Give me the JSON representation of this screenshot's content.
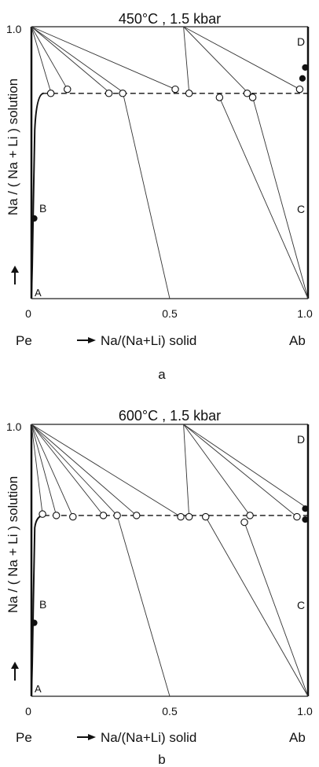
{
  "figure": {
    "panels": [
      {
        "id": "a",
        "title": "450°C , 1.5 kbar",
        "caption": "a",
        "ylabel": "Na / ( Na + Li ) solution",
        "xlabel_left": "Pe",
        "xlabel_mid": "Na/(Na+Li) solid",
        "xlabel_right": "Ab",
        "ticks": {
          "x0": "0",
          "x05": "0.5",
          "x1": "1.0",
          "y1": "1.0"
        },
        "corners": {
          "A": "A",
          "B": "B",
          "C": "C",
          "D": "D"
        }
      },
      {
        "id": "b",
        "title": "600°C , 1.5 kbar",
        "caption": "b",
        "ylabel": "Na / ( Na + Li ) solution",
        "xlabel_left": "Pe",
        "xlabel_mid": "Na/(Na+Li) solid",
        "xlabel_right": "Ab",
        "ticks": {
          "x0": "0",
          "x05": "0.5",
          "x1": "1.0",
          "y1": "1.0"
        },
        "corners": {
          "A": "A",
          "B": "B",
          "C": "C",
          "D": "D"
        }
      }
    ]
  },
  "chart_data": [
    {
      "type": "scatter",
      "title": "450°C , 1.5 kbar",
      "xlabel": "Na/(Na+Li) solid",
      "ylabel": "Na / ( Na + Li ) solution",
      "xlim": [
        0,
        1
      ],
      "ylim": [
        0,
        1
      ],
      "plateau_y": 0.755,
      "tie_lines": [
        [
          [
            0.0,
            1.0
          ],
          [
            0.07,
            0.76
          ]
        ],
        [
          [
            0.0,
            1.0
          ],
          [
            0.13,
            0.77
          ]
        ],
        [
          [
            0.0,
            1.0
          ],
          [
            0.28,
            0.76
          ]
        ],
        [
          [
            0.0,
            1.0
          ],
          [
            0.52,
            0.77
          ]
        ],
        [
          [
            0.0,
            1.0
          ],
          [
            0.33,
            0.76
          ]
        ],
        [
          [
            0.33,
            0.76
          ],
          [
            0.5,
            0.0
          ]
        ],
        [
          [
            0.55,
            1.0
          ],
          [
            0.57,
            0.76
          ]
        ],
        [
          [
            0.55,
            1.0
          ],
          [
            0.78,
            0.76
          ]
        ],
        [
          [
            0.55,
            1.0
          ],
          [
            0.97,
            0.77
          ]
        ],
        [
          [
            0.68,
            0.74
          ],
          [
            1.0,
            0.0
          ]
        ],
        [
          [
            0.8,
            0.74
          ],
          [
            1.0,
            0.0
          ]
        ]
      ],
      "open_points": [
        [
          0.07,
          0.755
        ],
        [
          0.13,
          0.77
        ],
        [
          0.28,
          0.755
        ],
        [
          0.33,
          0.755
        ],
        [
          0.52,
          0.77
        ],
        [
          0.57,
          0.755
        ],
        [
          0.68,
          0.74
        ],
        [
          0.78,
          0.755
        ],
        [
          0.8,
          0.74
        ],
        [
          0.97,
          0.77
        ]
      ],
      "filled_points": [
        [
          0.01,
          0.295
        ],
        [
          0.98,
          0.81
        ],
        [
          0.99,
          0.85
        ]
      ]
    },
    {
      "type": "scatter",
      "title": "600°C , 1.5 kbar",
      "xlabel": "Na/(Na+Li) solid",
      "ylabel": "Na / ( Na + Li ) solution",
      "xlim": [
        0,
        1
      ],
      "ylim": [
        0,
        1
      ],
      "plateau_y": 0.665,
      "tie_lines": [
        [
          [
            0.0,
            1.0
          ],
          [
            0.04,
            0.67
          ]
        ],
        [
          [
            0.0,
            1.0
          ],
          [
            0.09,
            0.665
          ]
        ],
        [
          [
            0.0,
            1.0
          ],
          [
            0.15,
            0.66
          ]
        ],
        [
          [
            0.0,
            1.0
          ],
          [
            0.26,
            0.665
          ]
        ],
        [
          [
            0.0,
            1.0
          ],
          [
            0.31,
            0.665
          ]
        ],
        [
          [
            0.0,
            1.0
          ],
          [
            0.38,
            0.665
          ]
        ],
        [
          [
            0.0,
            1.0
          ],
          [
            0.54,
            0.66
          ]
        ],
        [
          [
            0.31,
            0.665
          ],
          [
            0.5,
            0.0
          ]
        ],
        [
          [
            0.55,
            1.0
          ],
          [
            0.57,
            0.66
          ]
        ],
        [
          [
            0.55,
            1.0
          ],
          [
            0.79,
            0.665
          ]
        ],
        [
          [
            0.55,
            1.0
          ],
          [
            0.96,
            0.66
          ]
        ],
        [
          [
            0.55,
            1.0
          ],
          [
            1.0,
            0.69
          ]
        ],
        [
          [
            0.63,
            0.66
          ],
          [
            1.0,
            0.0
          ]
        ],
        [
          [
            0.77,
            0.64
          ],
          [
            1.0,
            0.0
          ]
        ]
      ],
      "open_points": [
        [
          0.04,
          0.67
        ],
        [
          0.09,
          0.665
        ],
        [
          0.15,
          0.66
        ],
        [
          0.26,
          0.665
        ],
        [
          0.31,
          0.665
        ],
        [
          0.38,
          0.665
        ],
        [
          0.54,
          0.66
        ],
        [
          0.57,
          0.66
        ],
        [
          0.63,
          0.66
        ],
        [
          0.77,
          0.64
        ],
        [
          0.79,
          0.665
        ],
        [
          0.96,
          0.66
        ]
      ],
      "filled_points": [
        [
          0.01,
          0.27
        ],
        [
          0.99,
          0.69
        ],
        [
          0.99,
          0.65
        ]
      ]
    }
  ]
}
